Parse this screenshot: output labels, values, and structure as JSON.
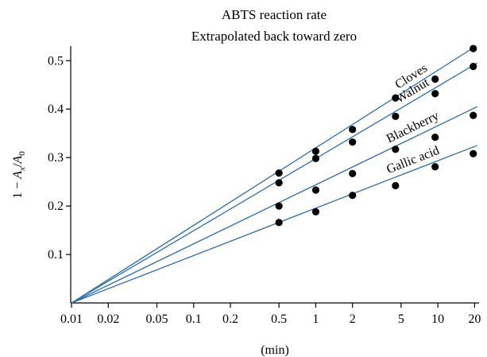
{
  "chart_data": {
    "type": "scatter",
    "title": "ABTS reaction rate",
    "subtitle": "Extrapolated back toward zero",
    "xlabel": "(min)",
    "ylabel_parts": [
      "1 − ",
      "A",
      "x",
      "/",
      "A",
      "0"
    ],
    "xscale": "log",
    "xlim": [
      0.01,
      21
    ],
    "ylim": [
      0.0,
      0.53
    ],
    "xticks": [
      0.01,
      0.02,
      0.05,
      0.1,
      0.2,
      0.5,
      1,
      2,
      5,
      10,
      20
    ],
    "xtick_labels": [
      "0.01",
      "0.02",
      "0.05",
      "0.1",
      "0.2",
      "0.5",
      "1",
      "2",
      "5",
      "10",
      "20"
    ],
    "yticks": [
      0.1,
      0.2,
      0.3,
      0.4,
      0.5
    ],
    "ytick_labels": [
      "0.1",
      "0.2",
      "0.3",
      "0.4",
      "0.5"
    ],
    "grid": false,
    "line_origin": [
      0.01,
      0.0
    ],
    "line_color": "#2a6db0",
    "marker_color": "#000000",
    "series": [
      {
        "name": "Cloves",
        "x": [
          0.5,
          1,
          2,
          4.5,
          9.5,
          19.5
        ],
        "y": [
          0.268,
          0.313,
          0.358,
          0.423,
          0.462,
          0.525
        ],
        "fit_end": [
          20.5,
          0.53
        ]
      },
      {
        "name": "Walnut",
        "x": [
          0.5,
          1,
          2,
          4.5,
          9.5,
          19.5
        ],
        "y": [
          0.248,
          0.298,
          0.332,
          0.385,
          0.432,
          0.488
        ],
        "fit_end": [
          21,
          0.495
        ]
      },
      {
        "name": "Blackberry",
        "x": [
          0.5,
          1,
          2,
          4.5,
          9.5,
          19.5
        ],
        "y": [
          0.2,
          0.233,
          0.267,
          0.317,
          0.342,
          0.387
        ],
        "fit_end": [
          21,
          0.405
        ]
      },
      {
        "name": "Gallic acid",
        "x": [
          0.5,
          1,
          2,
          4.5,
          9.5,
          19.5
        ],
        "y": [
          0.166,
          0.188,
          0.222,
          0.242,
          0.281,
          0.308
        ],
        "fit_end": [
          21,
          0.325
        ]
      }
    ]
  }
}
